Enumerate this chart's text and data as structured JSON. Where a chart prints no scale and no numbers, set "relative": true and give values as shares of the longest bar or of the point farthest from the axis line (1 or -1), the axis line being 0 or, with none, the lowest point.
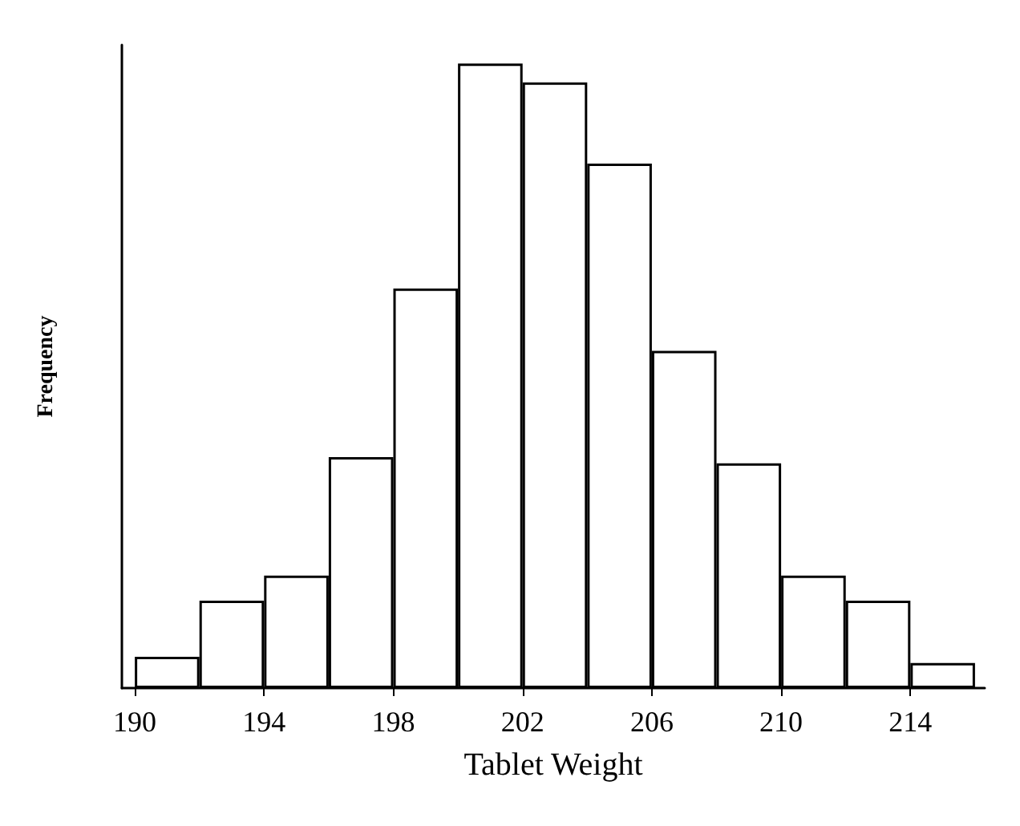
{
  "chart_data": {
    "type": "bar",
    "xlabel": "Tablet Weight",
    "ylabel": "Frequency",
    "relative": true,
    "x": [
      191,
      193,
      195,
      197,
      199,
      201,
      203,
      205,
      207,
      209,
      211,
      213,
      215
    ],
    "values": [
      0.05,
      0.14,
      0.18,
      0.37,
      0.64,
      1,
      0.97,
      0.84,
      0.54,
      0.36,
      0.18,
      0.14,
      0.04
    ],
    "color": "#ffffff",
    "xlim": [
      189.6,
      216.3
    ],
    "xticks": [
      190,
      194,
      198,
      202,
      206,
      210,
      214
    ],
    "grid": false
  }
}
